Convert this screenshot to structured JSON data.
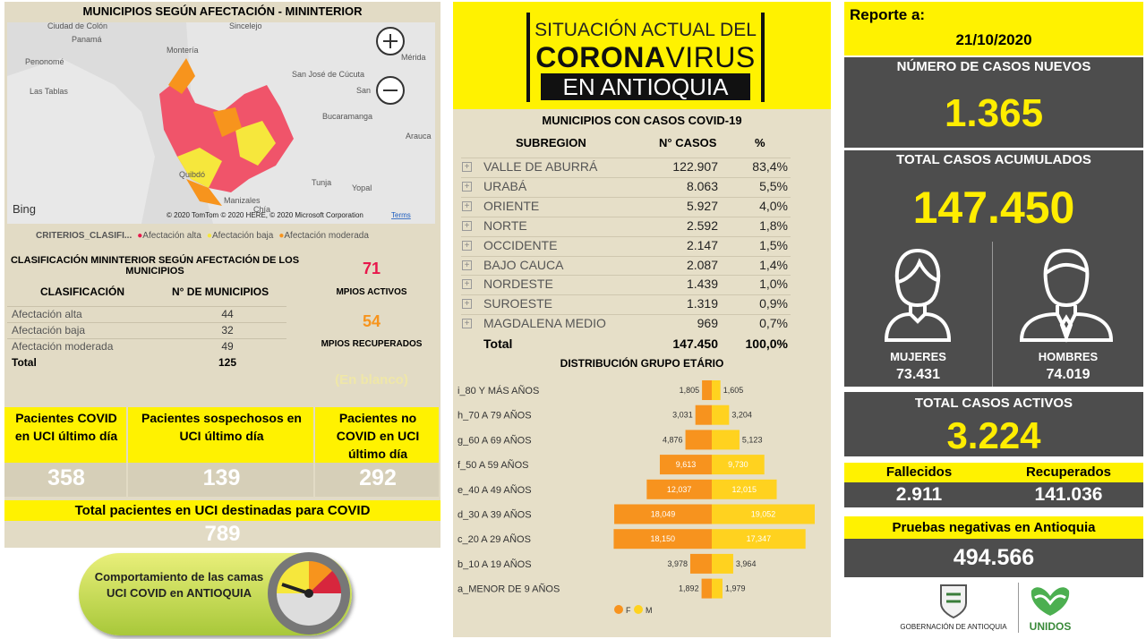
{
  "left": {
    "map_title": "MUNICIPIOS SEGÚN AFECTACIÓN - MININTERIOR",
    "map_labels": [
      "Ciudad de Colón",
      "Panamá",
      "Penonomé",
      "Las Tablas",
      "Montería",
      "Sincelejo",
      "Mérida",
      "San José de Cúcuta",
      "San",
      "Bucaramanga",
      "Arauca",
      "Quibdó",
      "Tunja",
      "Yopal",
      "Manizales",
      "Chía"
    ],
    "bing": "Bing",
    "map_attribution": "© 2020 TomTom © 2020 HERE, © 2020 Microsoft Corporation",
    "map_terms": "Terms",
    "legend_title": "CRITERIOS_CLASIFI...",
    "legend": [
      "Afectación alta",
      "Afectación baja",
      "Afectación moderada"
    ],
    "class_title": "CLASIFICACIÓN MININTERIOR SEGÚN AFECTACIÓN DE LOS MUNICIPIOS",
    "class_header": [
      "CLASIFICACIÓN",
      "N° DE MUNICIPIOS"
    ],
    "class_rows": [
      [
        "Afectación alta",
        "44"
      ],
      [
        "Afectación baja",
        "32"
      ],
      [
        "Afectación moderada",
        "49"
      ]
    ],
    "class_total": [
      "Total",
      "125"
    ],
    "activos": {
      "value": "71",
      "label": "MPIOS ACTIVOS"
    },
    "recuperados": {
      "value": "54",
      "label": "MPIOS RECUPERADOS"
    },
    "blank": "(En blanco)",
    "uci": [
      {
        "label": "Pacientes COVID en UCI último día",
        "value": "358"
      },
      {
        "label": "Pacientes sospechosos en UCI último día",
        "value": "139"
      },
      {
        "label": "Pacientes no COVID en UCI último día",
        "value": "292"
      }
    ],
    "uci_total": {
      "label": "Total pacientes en UCI destinadas para COVID",
      "value": "789"
    },
    "button": "Comportamiento de las camas UCI COVID en ANTIOQUIA"
  },
  "center": {
    "banner": [
      "SITUACIÓN ACTUAL DEL",
      "CORONA",
      "VIRUS",
      "EN ANTIOQUIA"
    ],
    "table_title": "MUNICIPIOS CON CASOS COVID-19",
    "header": [
      "SUBREGION",
      "N° CASOS",
      "%"
    ],
    "rows": [
      [
        "VALLE DE ABURRÁ",
        "122.907",
        "83,4%"
      ],
      [
        "URABÁ",
        "8.063",
        "5,5%"
      ],
      [
        "ORIENTE",
        "5.927",
        "4,0%"
      ],
      [
        "NORTE",
        "2.592",
        "1,8%"
      ],
      [
        "OCCIDENTE",
        "2.147",
        "1,5%"
      ],
      [
        "BAJO CAUCA",
        "2.087",
        "1,4%"
      ],
      [
        "NORDESTE",
        "1.439",
        "1,0%"
      ],
      [
        "SUROESTE",
        "1.319",
        "0,9%"
      ],
      [
        "MAGDALENA MEDIO",
        "969",
        "0,7%"
      ]
    ],
    "total": [
      "Total",
      "147.450",
      "100,0%"
    ]
  },
  "chart_data": {
    "type": "bar",
    "title": "DISTRIBUCIÓN GRUPO ETÁRIO",
    "categories": [
      "i_80 Y MÁS AÑOS",
      "h_70 A 79 AÑOS",
      "g_60 A 69 AÑOS",
      "f_50 A 59 AÑOS",
      "e_40 A 49 AÑOS",
      "d_30 A 39 AÑOS",
      "c_20 A 29 AÑOS",
      "b_10 A 19 AÑOS",
      "a_MENOR DE 9 AÑOS"
    ],
    "series": [
      {
        "name": "F",
        "color": "#f7931e",
        "values": [
          1805,
          3031,
          4876,
          9613,
          12037,
          18049,
          18150,
          3978,
          1892
        ],
        "value_labels": [
          "1,805",
          "3,031",
          "4,876",
          "9,613",
          "12,037",
          "18,049",
          "18,150",
          "3,978",
          "1,892"
        ]
      },
      {
        "name": "M",
        "color": "#ffd21f",
        "values": [
          1605,
          3204,
          5123,
          9730,
          12015,
          19052,
          17347,
          3964,
          1979
        ],
        "value_labels": [
          "1,605",
          "3,204",
          "5,123",
          "9,730",
          "12,015",
          "19,052",
          "17,347",
          "3,964",
          "1,979"
        ]
      }
    ]
  },
  "right": {
    "report_label": "Reporte a:",
    "report_date": "21/10/2020",
    "new_title": "NÚMERO DE CASOS NUEVOS",
    "new_value": "1.365",
    "acc_title": "TOTAL CASOS ACUMULADOS",
    "acc_value": "147.450",
    "women": {
      "label": "MUJERES",
      "value": "73.431"
    },
    "men": {
      "label": "HOMBRES",
      "value": "74.019"
    },
    "active_title": "TOTAL CASOS ACTIVOS",
    "active_value": "3.224",
    "deaths": {
      "label": "Fallecidos",
      "value": "2.911"
    },
    "recovered": {
      "label": "Recuperados",
      "value": "141.036"
    },
    "neg_title": "Pruebas negativas en Antioquia",
    "neg_value": "494.566",
    "logo_gov": "GOBERNACIÓN DE ANTIOQUIA",
    "logo_unidos": "UNIDOS"
  }
}
